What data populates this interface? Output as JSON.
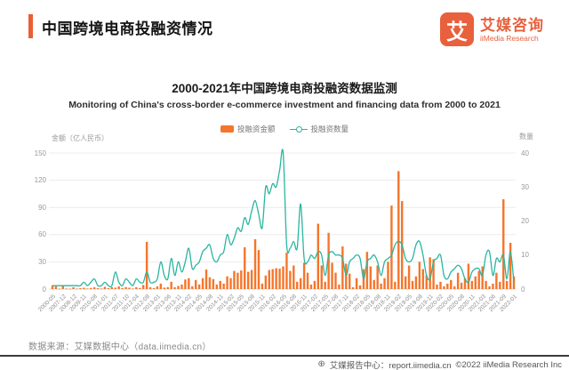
{
  "header": {
    "title": "中国跨境电商投融资情况",
    "logo": {
      "glyph": "艾",
      "name_cn": "艾媒咨询",
      "name_en": "iiMedia Research"
    }
  },
  "chart": {
    "title_cn": "2000-2021年中国跨境电商投融资数据监测",
    "title_en": "Monitoring of China's cross-border e-commerce investment and financing data from 2000 to 2021",
    "legend": [
      {
        "label": "投融资金额",
        "type": "bar",
        "color": "#f5752b"
      },
      {
        "label": "投融资数量",
        "type": "line",
        "color": "#2ab5a0"
      }
    ],
    "left_axis": {
      "unit": "金额（亿人民币）",
      "ticks": [
        150,
        120,
        90,
        60,
        30,
        0
      ]
    },
    "right_axis": {
      "unit": "数量",
      "ticks": [
        40,
        30,
        20,
        10,
        0
      ]
    }
  },
  "chart_data": {
    "type": "bar+line",
    "title": "2000-2021年中国跨境电商投融资数据监测",
    "left_ylim": [
      0,
      150
    ],
    "right_ylim": [
      0,
      40
    ],
    "grid": true,
    "legend_position": "top",
    "x_tick_labels": [
      "2000-05",
      "2007-12",
      "2008-12",
      "2009-11",
      "2010-08",
      "2011-01",
      "2011-07",
      "2011-10",
      "2012-04",
      "2012-08",
      "2013-01",
      "2013-06",
      "2013-11",
      "2014-02",
      "2014-05",
      "2014-08",
      "2014-11",
      "2015-02",
      "2015-05",
      "2015-08",
      "2015-11",
      "2016-02",
      "2016-05",
      "2016-08",
      "2016-11",
      "2017-02",
      "2017-05",
      "2017-08",
      "2017-11",
      "2018-02",
      "2018-05",
      "2018-08",
      "2018-11",
      "2019-02",
      "2019-05",
      "2019-08",
      "2019-11",
      "2020-02",
      "2020-05",
      "2020-08",
      "2020-11",
      "2021-03",
      "2021-06",
      "2021-09",
      "2022-01"
    ],
    "label_every": 3,
    "series": [
      {
        "name": "投融资金额",
        "type": "bar",
        "axis": "left",
        "unit": "亿人民币",
        "color": "#f5752b",
        "values": [
          4,
          3,
          0.4,
          4,
          0.6,
          0.4,
          2,
          0.5,
          1,
          1.5,
          0.6,
          1.2,
          2,
          1,
          0.6,
          2.5,
          1,
          2,
          1.6,
          3,
          1.2,
          2.2,
          1.5,
          0.6,
          2,
          1.2,
          4.5,
          52,
          2,
          1.2,
          3,
          6,
          1.6,
          2.2,
          8,
          2,
          3.5,
          5,
          10.5,
          12,
          3,
          10,
          5,
          12,
          21.5,
          13,
          11,
          5,
          9,
          6,
          14,
          12,
          20,
          18,
          20.5,
          46,
          19,
          21,
          55,
          43,
          6,
          15,
          21,
          22,
          23,
          22.5,
          25,
          40,
          20,
          26,
          8,
          12,
          29,
          18,
          5,
          9,
          72,
          26,
          8,
          62,
          29,
          18,
          5,
          47,
          28,
          17,
          2,
          12,
          4,
          22,
          41,
          25,
          10,
          26,
          6,
          12,
          30,
          92,
          8,
          130,
          97,
          14,
          26,
          9,
          14,
          30,
          22,
          15,
          35,
          33,
          5,
          8,
          3,
          6,
          10,
          3,
          18,
          7,
          12,
          28,
          9,
          14,
          20,
          25,
          9,
          3,
          6,
          18,
          8,
          99,
          9,
          51,
          14
        ]
      },
      {
        "name": "投融资数量",
        "type": "line",
        "axis": "right",
        "color": "#2ab5a0",
        "values": [
          1,
          1,
          1,
          1,
          1,
          1,
          1,
          1,
          1,
          2,
          1,
          2,
          3,
          1,
          1,
          2,
          1,
          1,
          5,
          2,
          1,
          3,
          2,
          1,
          3,
          2,
          2,
          5,
          2,
          2,
          3,
          8,
          4,
          3,
          9,
          4,
          8,
          5,
          8,
          12,
          6,
          7,
          8,
          11,
          12,
          13,
          9,
          8,
          10,
          11,
          16,
          13,
          15,
          18,
          17,
          21,
          19,
          23,
          26,
          22,
          18,
          30,
          28,
          31,
          30,
          35,
          40,
          13,
          12,
          14,
          12,
          25,
          9,
          8,
          10,
          9,
          11,
          10,
          4,
          10,
          11,
          10,
          10,
          9,
          4,
          8,
          9,
          10,
          9,
          3,
          8,
          9,
          10,
          8,
          4,
          8,
          9,
          10,
          13,
          14,
          13,
          9,
          8,
          9,
          13,
          14,
          10,
          4,
          3,
          8,
          9,
          10,
          4,
          3,
          5,
          6,
          7,
          6,
          3,
          2,
          5,
          6,
          6,
          4,
          10,
          11,
          4,
          9,
          8,
          10,
          3,
          11,
          2
        ]
      }
    ]
  },
  "footer": {
    "source": "数据来源：艾媒数据中心（data.iimedia.cn）",
    "report_center": "艾媒报告中心：report.iimedia.cn",
    "copyright": "©2022  iiMedia Research Inc"
  }
}
